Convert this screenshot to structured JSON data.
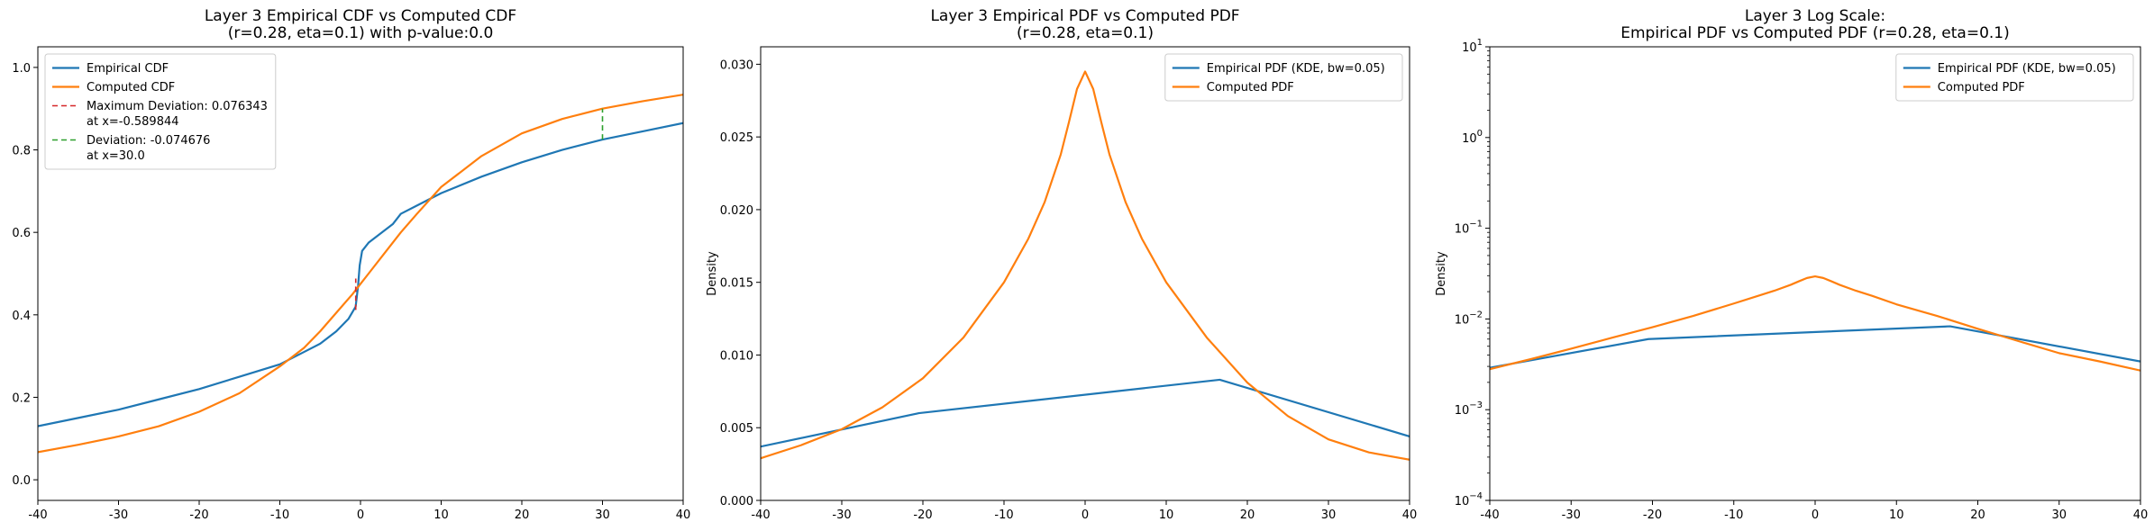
{
  "figure": {
    "colors": {
      "blue": "#1f77b4",
      "orange": "#ff7f0e",
      "red": "#d62728",
      "green": "#2ca02c"
    }
  },
  "chart_data": [
    {
      "type": "line",
      "title_lines": [
        "Layer 3 Empirical CDF vs Computed CDF",
        "(r=0.28, eta=0.1) with p-value:0.0"
      ],
      "xlabel": "",
      "ylabel": "",
      "xlim": [
        -40,
        40
      ],
      "ylim": [
        -0.05,
        1.05
      ],
      "yscale": "linear",
      "xticks": [
        -40,
        -30,
        -20,
        -10,
        0,
        10,
        20,
        30,
        40
      ],
      "yticks": [
        0.0,
        0.2,
        0.4,
        0.6,
        0.8,
        1.0
      ],
      "ytick_labels": [
        "0.0",
        "0.2",
        "0.4",
        "0.6",
        "0.8",
        "1.0"
      ],
      "legend_position": "upper-left",
      "series": [
        {
          "name": "Empirical CDF",
          "color": "#1f77b4",
          "style": "solid",
          "x": [
            -40,
            -35,
            -30,
            -25,
            -20,
            -15,
            -10,
            -7,
            -5,
            -3,
            -1.5,
            -0.6,
            -0.3,
            -0.1,
            0.2,
            1,
            2,
            3,
            4,
            5,
            7,
            10,
            15,
            20,
            25,
            30,
            35,
            40
          ],
          "y": [
            0.13,
            0.15,
            0.17,
            0.195,
            0.22,
            0.25,
            0.28,
            0.31,
            0.33,
            0.36,
            0.39,
            0.42,
            0.47,
            0.52,
            0.555,
            0.575,
            0.59,
            0.605,
            0.62,
            0.645,
            0.665,
            0.695,
            0.735,
            0.77,
            0.8,
            0.825,
            0.845,
            0.865
          ]
        },
        {
          "name": "Computed CDF",
          "color": "#ff7f0e",
          "style": "solid",
          "x": [
            -40,
            -35,
            -30,
            -25,
            -20,
            -15,
            -10,
            -7,
            -5,
            -3,
            -1,
            0,
            1,
            3,
            5,
            7,
            10,
            15,
            20,
            25,
            30,
            35,
            40
          ],
          "y": [
            0.067,
            0.085,
            0.105,
            0.13,
            0.165,
            0.21,
            0.275,
            0.32,
            0.36,
            0.405,
            0.45,
            0.475,
            0.5,
            0.55,
            0.6,
            0.645,
            0.71,
            0.785,
            0.84,
            0.875,
            0.9,
            0.918,
            0.934
          ]
        },
        {
          "name": "Maximum Deviation: 0.076343\nat x=-0.589844",
          "legend_lines": [
            "Maximum Deviation: 0.076343",
            "at x=-0.589844"
          ],
          "color": "#d62728",
          "style": "dashed",
          "x": [
            -0.589844,
            -0.589844
          ],
          "y": [
            0.412,
            0.488
          ]
        },
        {
          "name": "Deviation: -0.074676\nat x=30.0",
          "legend_lines": [
            "Deviation: -0.074676",
            "at x=30.0"
          ],
          "color": "#2ca02c",
          "style": "dashed",
          "x": [
            30,
            30
          ],
          "y": [
            0.825,
            0.9
          ]
        }
      ]
    },
    {
      "type": "line",
      "title_lines": [
        "Layer 3 Empirical PDF vs Computed PDF",
        "(r=0.28, eta=0.1)"
      ],
      "xlabel": "",
      "ylabel": "Density",
      "xlim": [
        -40,
        40
      ],
      "ylim": [
        0,
        0.0312
      ],
      "yscale": "linear",
      "xticks": [
        -40,
        -30,
        -20,
        -10,
        0,
        10,
        20,
        30,
        40
      ],
      "yticks": [
        0.0,
        0.005,
        0.01,
        0.015,
        0.02,
        0.025,
        0.03
      ],
      "ytick_labels": [
        "0.000",
        "0.005",
        "0.010",
        "0.015",
        "0.020",
        "0.025",
        "0.030"
      ],
      "legend_position": "upper-right",
      "series": [
        {
          "name": "Empirical PDF (KDE, bw=0.05)",
          "color": "#1f77b4",
          "style": "solid",
          "x": [
            -40,
            -20.5,
            16.6,
            40
          ],
          "y": [
            0.0037,
            0.006,
            0.0083,
            0.0044
          ]
        },
        {
          "name": "Computed PDF",
          "color": "#ff7f0e",
          "style": "solid",
          "x": [
            -40,
            -35,
            -30,
            -25,
            -20,
            -15,
            -10,
            -7,
            -5,
            -3,
            -2,
            -1,
            0,
            1,
            2,
            3,
            5,
            7,
            10,
            15,
            20,
            25,
            30,
            35,
            40
          ],
          "y": [
            0.0029,
            0.0038,
            0.0049,
            0.0064,
            0.0084,
            0.0112,
            0.015,
            0.018,
            0.0205,
            0.0238,
            0.026,
            0.0283,
            0.0295,
            0.0283,
            0.026,
            0.0238,
            0.0205,
            0.018,
            0.015,
            0.0112,
            0.0081,
            0.0058,
            0.0042,
            0.0033,
            0.0028
          ]
        }
      ]
    },
    {
      "type": "line",
      "title_lines": [
        "Layer 3 Log Scale:",
        "Empirical PDF vs Computed PDF (r=0.28, eta=0.1)"
      ],
      "xlabel": "",
      "ylabel": "Density",
      "xlim": [
        -40,
        40
      ],
      "ylim": [
        0.0001,
        10
      ],
      "yscale": "log",
      "xticks": [
        -40,
        -30,
        -20,
        -10,
        0,
        10,
        20,
        30,
        40
      ],
      "yticks": [
        0.0001,
        0.001,
        0.01,
        0.1,
        1,
        10
      ],
      "ytick_exponents": [
        "−4",
        "−3",
        "−2",
        "−1",
        "0",
        "1"
      ],
      "legend_position": "upper-right",
      "series": [
        {
          "name": "Empirical PDF (KDE, bw=0.05)",
          "color": "#1f77b4",
          "style": "solid",
          "x": [
            -40,
            -20.5,
            16.6,
            40
          ],
          "y": [
            0.0029,
            0.006,
            0.0083,
            0.0034
          ]
        },
        {
          "name": "Computed PDF",
          "color": "#ff7f0e",
          "style": "solid",
          "x": [
            -40,
            -35,
            -30,
            -25,
            -20,
            -15,
            -10,
            -7,
            -5,
            -3,
            -2,
            -1,
            0,
            1,
            2,
            3,
            5,
            7,
            10,
            15,
            20,
            25,
            30,
            35,
            40
          ],
          "y": [
            0.0028,
            0.0036,
            0.0047,
            0.0062,
            0.0081,
            0.0108,
            0.0148,
            0.018,
            0.0205,
            0.0238,
            0.026,
            0.0283,
            0.0295,
            0.0283,
            0.026,
            0.0238,
            0.0205,
            0.018,
            0.0145,
            0.0108,
            0.0078,
            0.0057,
            0.0042,
            0.0034,
            0.0027
          ]
        }
      ]
    }
  ]
}
